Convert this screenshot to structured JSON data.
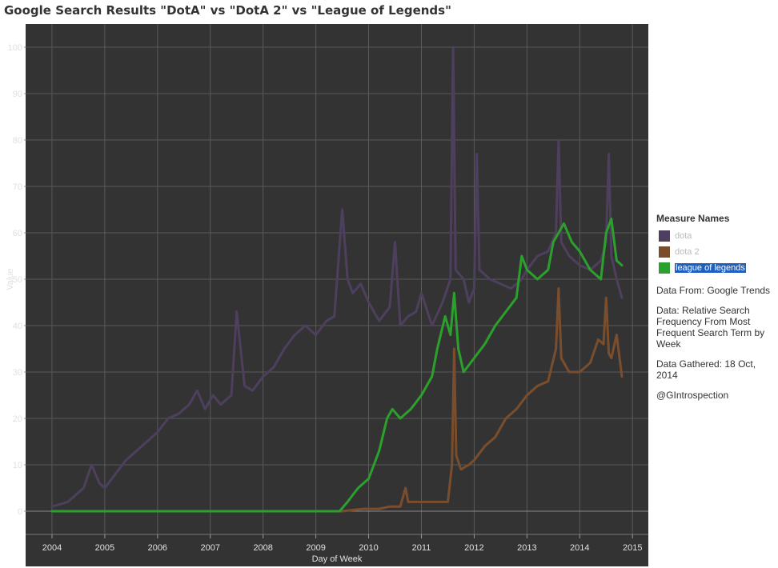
{
  "chart_data": {
    "type": "line",
    "title": "Google Search Results \"DotA\" vs \"DotA 2\" vs \"League of Legends\"",
    "xlabel": "Day of Week",
    "ylabel": "Value",
    "xlim": [
      2003.5,
      2015.3
    ],
    "ylim": [
      -5,
      105
    ],
    "x_ticks": [
      "2004",
      "2005",
      "2006",
      "2007",
      "2008",
      "2009",
      "2010",
      "2011",
      "2012",
      "2013",
      "2014",
      "2015"
    ],
    "y_ticks": [
      "0",
      "10",
      "20",
      "30",
      "40",
      "50",
      "60",
      "70",
      "80",
      "90",
      "100"
    ],
    "grid": true,
    "background": "#333333",
    "legend_title": "Measure Names",
    "legend_position": "right",
    "series": [
      {
        "name": "dota",
        "color": "#4e3f5e",
        "x": [
          2004.0,
          2004.3,
          2004.6,
          2004.75,
          2004.9,
          2005.0,
          2005.2,
          2005.4,
          2005.6,
          2005.8,
          2006.0,
          2006.2,
          2006.4,
          2006.6,
          2006.75,
          2006.9,
          2007.05,
          2007.2,
          2007.4,
          2007.5,
          2007.65,
          2007.8,
          2008.0,
          2008.2,
          2008.4,
          2008.6,
          2008.8,
          2009.0,
          2009.2,
          2009.35,
          2009.5,
          2009.6,
          2009.7,
          2009.85,
          2010.0,
          2010.2,
          2010.4,
          2010.5,
          2010.6,
          2010.75,
          2010.9,
          2011.0,
          2011.2,
          2011.4,
          2011.55,
          2011.6,
          2011.65,
          2011.8,
          2011.9,
          2012.0,
          2012.05,
          2012.1,
          2012.3,
          2012.5,
          2012.7,
          2012.9,
          2013.0,
          2013.2,
          2013.4,
          2013.55,
          2013.6,
          2013.65,
          2013.8,
          2014.0,
          2014.2,
          2014.4,
          2014.5,
          2014.55,
          2014.6,
          2014.7,
          2014.8
        ],
        "values": [
          1,
          2,
          5,
          10,
          6,
          5,
          8,
          11,
          13,
          15,
          17,
          20,
          21,
          23,
          26,
          22,
          25,
          23,
          25,
          43,
          27,
          26,
          29,
          31,
          35,
          38,
          40,
          38,
          41,
          42,
          65,
          50,
          47,
          49,
          45,
          41,
          44,
          58,
          40,
          42,
          43,
          47,
          40,
          45,
          50,
          100,
          52,
          50,
          45,
          48,
          77,
          52,
          50,
          49,
          48,
          50,
          52,
          55,
          56,
          60,
          80,
          58,
          55,
          53,
          52,
          54,
          58,
          77,
          55,
          50,
          46
        ]
      },
      {
        "name": "dota 2",
        "color": "#7a4e2d",
        "x": [
          2004.0,
          2009.5,
          2009.9,
          2010.2,
          2010.4,
          2010.6,
          2010.7,
          2010.75,
          2010.8,
          2011.0,
          2011.3,
          2011.5,
          2011.58,
          2011.62,
          2011.66,
          2011.75,
          2011.9,
          2012.0,
          2012.2,
          2012.4,
          2012.6,
          2012.8,
          2013.0,
          2013.2,
          2013.4,
          2013.55,
          2013.6,
          2013.65,
          2013.8,
          2014.0,
          2014.2,
          2014.35,
          2014.45,
          2014.5,
          2014.55,
          2014.6,
          2014.7,
          2014.8
        ],
        "values": [
          0,
          0,
          0.5,
          0.5,
          1,
          1,
          5,
          2,
          2,
          2,
          2,
          2,
          10,
          35,
          12,
          9,
          10,
          11,
          14,
          16,
          20,
          22,
          25,
          27,
          28,
          35,
          48,
          33,
          30,
          30,
          32,
          37,
          36,
          46,
          34,
          33,
          38,
          29
        ]
      },
      {
        "name": "league of legends",
        "color": "#2ca02c",
        "x": [
          2004.0,
          2009.45,
          2009.6,
          2009.8,
          2010.0,
          2010.2,
          2010.35,
          2010.45,
          2010.6,
          2010.8,
          2011.0,
          2011.2,
          2011.3,
          2011.45,
          2011.55,
          2011.62,
          2011.7,
          2011.8,
          2012.0,
          2012.2,
          2012.4,
          2012.6,
          2012.8,
          2012.9,
          2013.0,
          2013.2,
          2013.4,
          2013.5,
          2013.6,
          2013.7,
          2013.85,
          2014.0,
          2014.2,
          2014.4,
          2014.5,
          2014.6,
          2014.7,
          2014.8
        ],
        "values": [
          0,
          0,
          2,
          5,
          7,
          13,
          20,
          22,
          20,
          22,
          25,
          29,
          35,
          42,
          38,
          47,
          35,
          30,
          33,
          36,
          40,
          43,
          46,
          55,
          52,
          50,
          52,
          58,
          60,
          62,
          58,
          56,
          52,
          50,
          60,
          63,
          54,
          53
        ]
      }
    ],
    "notes": [
      "Data From: Google Trends",
      "Data: Relative Search Frequency From Most Frequent Search Term by Week",
      "Data Gathered: 18 Oct, 2014",
      "@GIntrospection"
    ]
  }
}
